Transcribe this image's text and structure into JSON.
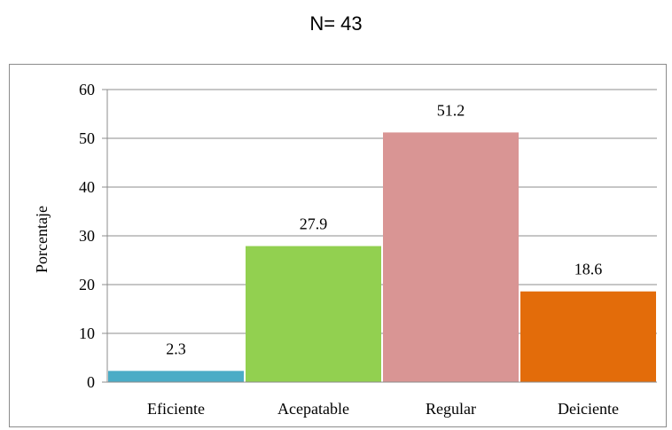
{
  "caption": "N= 43",
  "chart_data": {
    "type": "bar",
    "categories": [
      "Eficiente",
      "Acepatable",
      "Regular",
      "Deiciente"
    ],
    "values": [
      2.3,
      27.9,
      51.2,
      18.6
    ],
    "data_labels": [
      "2.3",
      "27.9",
      "51.2",
      "18.6"
    ],
    "colors": [
      "#4bacc6",
      "#92d050",
      "#d99594",
      "#e36c0a"
    ],
    "ylabel": "Porcentaje",
    "xlabel": "",
    "ylim": [
      0,
      60
    ],
    "yticks": [
      0,
      10,
      20,
      30,
      40,
      50,
      60
    ],
    "grid": true,
    "legend": "none"
  }
}
